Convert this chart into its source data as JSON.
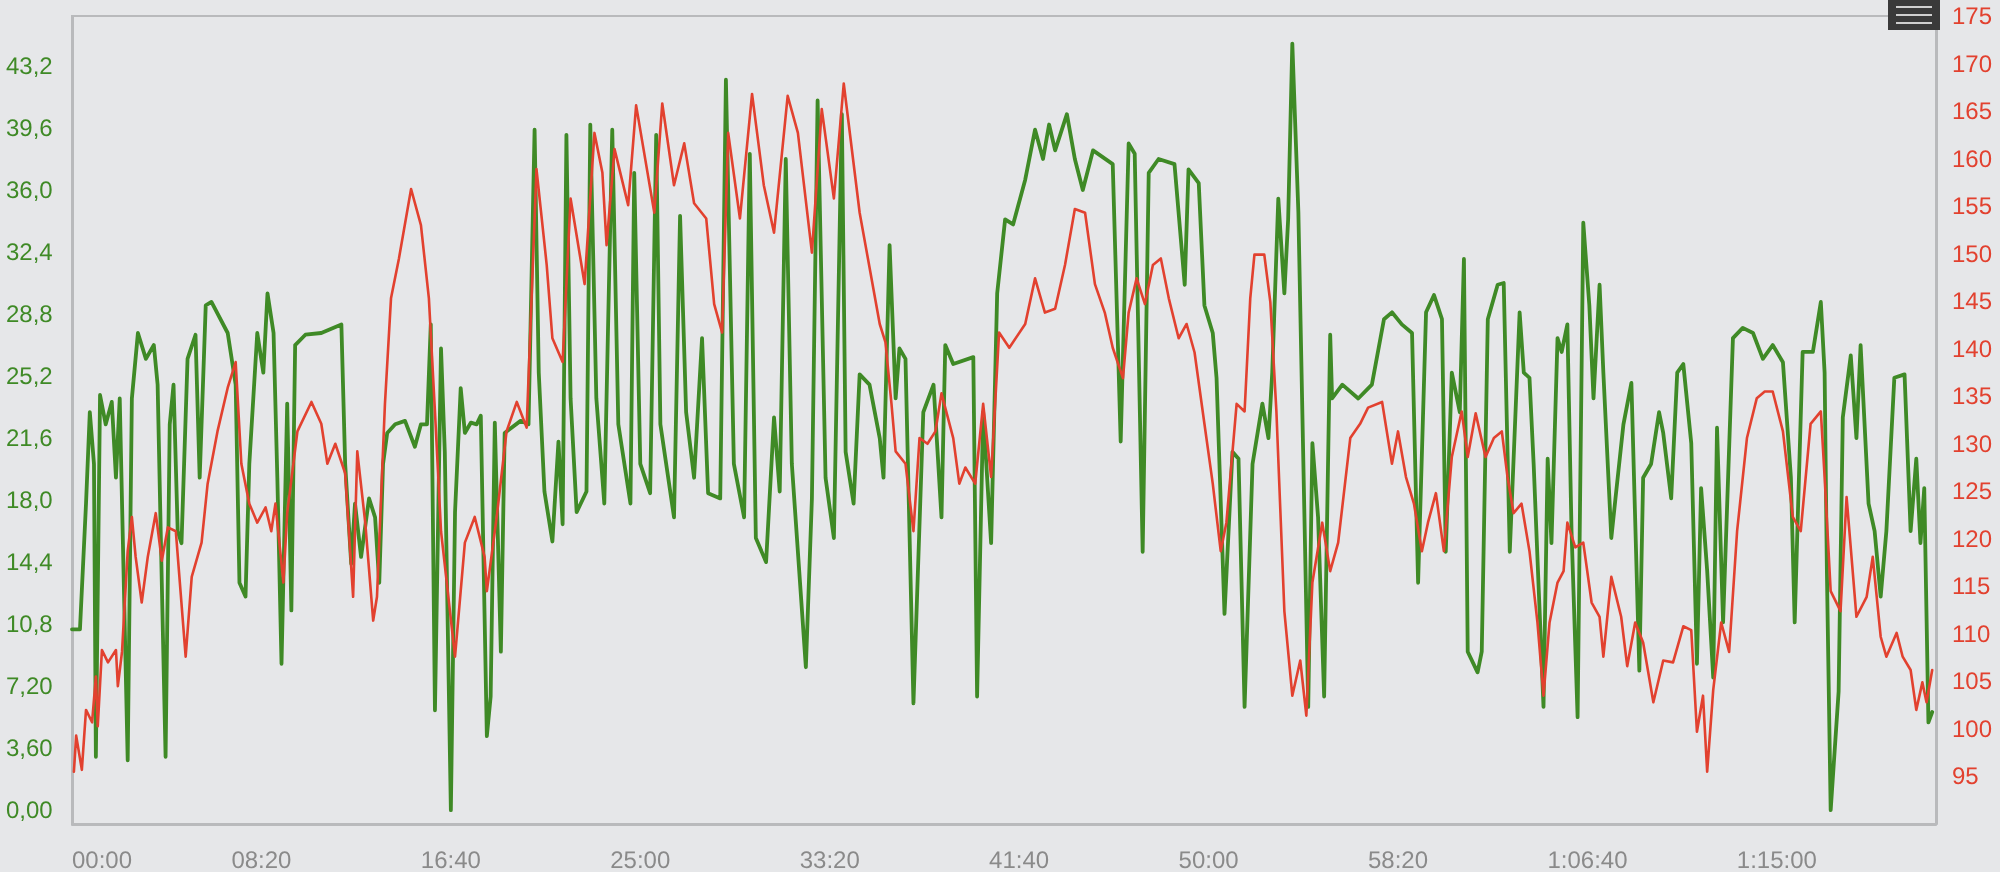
{
  "chart_data": {
    "type": "line",
    "marker": "none",
    "line_style": "solid",
    "xlim": [
      0,
      4920
    ],
    "xticks": [
      {
        "value": 0,
        "label": "00:00"
      },
      {
        "value": 500,
        "label": "08:20"
      },
      {
        "value": 1000,
        "label": "16:40"
      },
      {
        "value": 1500,
        "label": "25:00"
      },
      {
        "value": 2000,
        "label": "33:20"
      },
      {
        "value": 2500,
        "label": "41:40"
      },
      {
        "value": 3000,
        "label": "50:00"
      },
      {
        "value": 3500,
        "label": "58:20"
      },
      {
        "value": 4000,
        "label": "1:06:40"
      },
      {
        "value": 4500,
        "label": "1:15:00"
      }
    ],
    "ylim": [
      -0.8,
      46.1
    ],
    "yticks": [
      {
        "value": 0,
        "label": "0,00"
      },
      {
        "value": 3.6,
        "label": "3,60"
      },
      {
        "value": 7.2,
        "label": "7,20"
      },
      {
        "value": 10.8,
        "label": "10,8"
      },
      {
        "value": 14.4,
        "label": "14,4"
      },
      {
        "value": 18,
        "label": "18,0"
      },
      {
        "value": 21.6,
        "label": "21,6"
      },
      {
        "value": 25.2,
        "label": "25,2"
      },
      {
        "value": 28.8,
        "label": "28,8"
      },
      {
        "value": 32.4,
        "label": "32,4"
      },
      {
        "value": 36,
        "label": "36,0"
      },
      {
        "value": 39.6,
        "label": "39,6"
      },
      {
        "value": 43.2,
        "label": "43,2"
      }
    ],
    "y2lim": [
      90,
      175
    ],
    "y2ticks": [
      95,
      100,
      105,
      110,
      115,
      120,
      125,
      130,
      135,
      140,
      145,
      150,
      155,
      160,
      165,
      170,
      175
    ],
    "series": [
      {
        "color": "#3f8a26",
        "x": [
          0,
          21,
          37,
          47,
          58,
          63,
          74,
          89,
          105,
          116,
          126,
          147,
          158,
          174,
          195,
          216,
          226,
          237,
          247,
          258,
          268,
          279,
          289,
          305,
          326,
          337,
          353,
          368,
          411,
          432,
          442,
          458,
          468,
          489,
          505,
          516,
          532,
          542,
          553,
          568,
          579,
          589,
          616,
          658,
          711,
          721,
          737,
          747,
          763,
          784,
          800,
          811,
          821,
          832,
          853,
          879,
          905,
          921,
          937,
          947,
          958,
          974,
          984,
          1000,
          1011,
          1026,
          1037,
          1053,
          1068,
          1079,
          1095,
          1105,
          1116,
          1132,
          1142,
          1184,
          1205,
          1221,
          1232,
          1247,
          1268,
          1284,
          1295,
          1305,
          1316,
          1332,
          1358,
          1368,
          1384,
          1405,
          1426,
          1442,
          1474,
          1484,
          1500,
          1526,
          1542,
          1553,
          1589,
          1605,
          1621,
          1642,
          1663,
          1679,
          1711,
          1726,
          1747,
          1774,
          1789,
          1805,
          1832,
          1853,
          1868,
          1884,
          1900,
          1937,
          1953,
          1968,
          1989,
          2011,
          2032,
          2042,
          2063,
          2079,
          2105,
          2132,
          2142,
          2158,
          2174,
          2184,
          2200,
          2221,
          2247,
          2274,
          2295,
          2305,
          2326,
          2379,
          2389,
          2405,
          2426,
          2442,
          2463,
          2484,
          2516,
          2542,
          2563,
          2579,
          2595,
          2626,
          2647,
          2668,
          2695,
          2747,
          2768,
          2789,
          2805,
          2826,
          2842,
          2868,
          2910,
          2937,
          2947,
          2974,
          2989,
          3011,
          3021,
          3042,
          3063,
          3079,
          3095,
          3116,
          3142,
          3158,
          3168,
          3184,
          3200,
          3210,
          3221,
          3237,
          3263,
          3274,
          3289,
          3305,
          3321,
          3326,
          3353,
          3395,
          3431,
          3463,
          3484,
          3510,
          3537,
          3553,
          3574,
          3595,
          3616,
          3626,
          3642,
          3663,
          3674,
          3684,
          3710,
          3721,
          3737,
          3763,
          3779,
          3795,
          3821,
          3832,
          3847,
          3858,
          3884,
          3895,
          3905,
          3921,
          3932,
          3947,
          3958,
          3974,
          3989,
          4005,
          4016,
          4032,
          4042,
          4063,
          4074,
          4095,
          4116,
          4137,
          4147,
          4168,
          4189,
          4200,
          4221,
          4237,
          4253,
          4274,
          4289,
          4300,
          4316,
          4332,
          4342,
          4358,
          4384,
          4410,
          4437,
          4463,
          4489,
          4516,
          4537,
          4547,
          4568,
          4595,
          4616,
          4626,
          4632,
          4642,
          4663,
          4674,
          4695,
          4710,
          4721,
          4742,
          4758,
          4774,
          4789,
          4810,
          4837,
          4853,
          4868,
          4879,
          4889,
          4900,
          4910
        ],
        "values": [
          10.5,
          10.5,
          17.8,
          23.1,
          20.1,
          3.1,
          24.1,
          22.4,
          23.7,
          19.3,
          23.9,
          2.9,
          23.9,
          27.7,
          26.2,
          27.0,
          24.7,
          13.2,
          3.1,
          22.4,
          24.7,
          16.2,
          15.5,
          26.2,
          27.6,
          19.3,
          29.3,
          29.5,
          27.7,
          24.7,
          13.2,
          12.4,
          20.1,
          27.7,
          25.4,
          30.0,
          27.7,
          19.3,
          8.5,
          23.6,
          11.6,
          27.0,
          27.6,
          27.7,
          28.2,
          20.1,
          14.3,
          17.8,
          14.7,
          18.1,
          17.0,
          13.2,
          20.1,
          21.9,
          22.4,
          22.6,
          21.1,
          22.4,
          22.4,
          28.2,
          5.8,
          26.8,
          20.8,
          0,
          17.3,
          24.5,
          21.9,
          22.5,
          22.4,
          22.9,
          4.3,
          6.6,
          22.5,
          9.2,
          21.9,
          22.6,
          22.4,
          39.5,
          25.4,
          18.5,
          15.6,
          21.4,
          16.6,
          39.2,
          23.9,
          17.3,
          18.5,
          39.8,
          23.9,
          17.8,
          39.5,
          22.4,
          17.8,
          37.0,
          20.1,
          18.4,
          39.2,
          22.4,
          17.0,
          34.5,
          23.1,
          19.3,
          27.4,
          18.4,
          18.1,
          42.4,
          20.1,
          17.0,
          38.1,
          15.8,
          14.4,
          22.8,
          18.5,
          37.8,
          20.1,
          8.3,
          18.1,
          41.2,
          19.3,
          15.8,
          40.4,
          20.8,
          17.8,
          25.3,
          24.7,
          21.6,
          19.3,
          32.8,
          23.9,
          26.8,
          26.2,
          6.2,
          23.1,
          24.7,
          17.0,
          27.0,
          25.9,
          26.3,
          6.6,
          23.1,
          15.5,
          30.0,
          34.3,
          34.0,
          36.6,
          39.5,
          37.8,
          39.8,
          38.3,
          40.4,
          37.8,
          36.0,
          38.3,
          37.5,
          21.4,
          38.7,
          38.1,
          15.0,
          37.0,
          37.8,
          37.5,
          30.5,
          37.2,
          36.4,
          29.3,
          27.7,
          25.1,
          11.4,
          20.8,
          20.4,
          6.0,
          20.1,
          23.6,
          21.6,
          25.4,
          35.5,
          30.0,
          34.3,
          44.5,
          34.7,
          6.0,
          21.3,
          17.0,
          6.6,
          27.6,
          23.9,
          24.7,
          23.9,
          24.7,
          28.5,
          28.9,
          28.2,
          27.7,
          13.2,
          28.9,
          29.9,
          28.5,
          15.0,
          25.4,
          23.1,
          32.0,
          9.2,
          8.0,
          9.2,
          28.5,
          30.5,
          30.6,
          15.0,
          28.9,
          25.4,
          25.1,
          20.1,
          6.0,
          20.4,
          15.5,
          27.4,
          26.6,
          28.2,
          16.2,
          5.4,
          34.1,
          29.3,
          23.9,
          30.5,
          25.4,
          15.8,
          18.1,
          22.4,
          24.8,
          8.1,
          19.3,
          20.1,
          23.1,
          21.9,
          18.1,
          25.4,
          25.9,
          21.3,
          8.5,
          18.7,
          13.9,
          7.7,
          22.2,
          10.9,
          27.4,
          28.0,
          27.7,
          26.2,
          27.0,
          26.0,
          19.3,
          10.9,
          26.6,
          26.6,
          29.5,
          25.4,
          13.9,
          0,
          6.9,
          22.8,
          26.4,
          21.6,
          27.0,
          17.8,
          16.2,
          12.4,
          16.2,
          25.1,
          25.3,
          16.2,
          20.4,
          15.5,
          18.7,
          5.1,
          5.7
        ]
      },
      {
        "color": "#e2412f",
        "axis": "y2",
        "x": [
          5,
          11,
          26,
          37,
          53,
          63,
          68,
          79,
          95,
          116,
          121,
          132,
          147,
          158,
          168,
          184,
          200,
          221,
          237,
          253,
          274,
          300,
          316,
          342,
          358,
          384,
          411,
          432,
          447,
          468,
          489,
          511,
          526,
          537,
          558,
          568,
          595,
          632,
          658,
          674,
          695,
          721,
          742,
          753,
          774,
          795,
          805,
          826,
          842,
          863,
          895,
          921,
          942,
          958,
          974,
          1011,
          1037,
          1063,
          1089,
          1095,
          1121,
          1147,
          1174,
          1200,
          1226,
          1253,
          1268,
          1295,
          1316,
          1353,
          1379,
          1400,
          1411,
          1432,
          1468,
          1489,
          1537,
          1558,
          1589,
          1616,
          1642,
          1674,
          1695,
          1716,
          1732,
          1763,
          1795,
          1826,
          1853,
          1889,
          1916,
          1953,
          1979,
          2011,
          2037,
          2079,
          2132,
          2147,
          2163,
          2174,
          2200,
          2221,
          2237,
          2258,
          2279,
          2295,
          2326,
          2342,
          2358,
          2384,
          2405,
          2426,
          2447,
          2474,
          2516,
          2542,
          2568,
          2595,
          2621,
          2647,
          2674,
          2700,
          2726,
          2747,
          2774,
          2789,
          2810,
          2832,
          2853,
          2874,
          2895,
          2921,
          2942,
          2963,
          2989,
          3011,
          3032,
          3047,
          3074,
          3095,
          3110,
          3121,
          3147,
          3163,
          3179,
          3200,
          3221,
          3242,
          3258,
          3274,
          3300,
          3321,
          3342,
          3374,
          3400,
          3421,
          3458,
          3484,
          3500,
          3521,
          3542,
          3563,
          3579,
          3600,
          3621,
          3642,
          3668,
          3684,
          3705,
          3731,
          3753,
          3774,
          3789,
          3805,
          3826,
          3847,
          3868,
          3884,
          3900,
          3921,
          3937,
          3947,
          3968,
          3989,
          4011,
          4032,
          4042,
          4063,
          4089,
          4105,
          4126,
          4147,
          4174,
          4200,
          4226,
          4253,
          4274,
          4289,
          4305,
          4316,
          4332,
          4353,
          4374,
          4395,
          4421,
          4447,
          4468,
          4489,
          4516,
          4542,
          4563,
          4589,
          4616,
          4626,
          4642,
          4668,
          4684,
          4710,
          4737,
          4753,
          4774,
          4789,
          4816,
          4832,
          4853,
          4868,
          4884,
          4895,
          4910
        ],
        "values": [
          95.5,
          99.3,
          95.7,
          102.0,
          100.7,
          105.5,
          100.3,
          108.3,
          107.0,
          108.3,
          104.5,
          108.1,
          118.7,
          122.3,
          118.1,
          113.3,
          118.1,
          122.7,
          117.7,
          121.2,
          120.8,
          107.6,
          116.0,
          119.6,
          125.8,
          131.3,
          135.9,
          138.6,
          127.9,
          123.7,
          121.7,
          123.3,
          120.8,
          123.7,
          115.4,
          122.7,
          131.3,
          134.4,
          132.1,
          127.9,
          130.0,
          126.9,
          113.9,
          129.2,
          121.7,
          111.4,
          113.9,
          134.2,
          145.3,
          149.5,
          156.8,
          153.0,
          145.3,
          133.4,
          120.8,
          107.6,
          119.6,
          122.3,
          118.1,
          114.5,
          122.3,
          131.3,
          134.4,
          131.7,
          158.9,
          148.8,
          141.1,
          138.6,
          155.8,
          146.8,
          162.7,
          158.5,
          150.9,
          161.0,
          155.1,
          165.6,
          154.3,
          165.8,
          157.2,
          161.6,
          155.3,
          153.7,
          144.7,
          141.7,
          162.7,
          153.7,
          166.8,
          157.2,
          152.2,
          166.6,
          162.7,
          150.1,
          165.2,
          155.8,
          167.9,
          154.3,
          142.6,
          140.7,
          134.2,
          129.2,
          127.9,
          120.8,
          130.6,
          130.0,
          131.3,
          135.3,
          130.6,
          125.8,
          127.5,
          125.8,
          134.2,
          126.5,
          141.7,
          140.1,
          142.6,
          147.4,
          143.8,
          144.2,
          148.8,
          154.7,
          154.3,
          146.8,
          143.8,
          140.1,
          136.9,
          143.8,
          147.4,
          144.7,
          148.8,
          149.5,
          145.3,
          141.1,
          142.6,
          139.6,
          132.1,
          125.8,
          118.7,
          121.7,
          134.2,
          133.4,
          145.3,
          149.9,
          149.9,
          144.9,
          133.4,
          112.4,
          103.5,
          107.2,
          101.4,
          115.4,
          121.7,
          116.6,
          119.6,
          130.6,
          132.1,
          133.8,
          134.4,
          127.9,
          131.3,
          126.5,
          123.7,
          118.7,
          121.7,
          124.8,
          118.7,
          128.6,
          133.4,
          128.6,
          133.2,
          128.6,
          130.6,
          131.3,
          126.5,
          122.7,
          123.7,
          118.7,
          111.2,
          103.5,
          111.2,
          115.4,
          116.6,
          121.7,
          119.1,
          119.6,
          113.3,
          111.8,
          107.6,
          116.0,
          111.8,
          106.6,
          111.2,
          109.1,
          102.8,
          107.2,
          107.0,
          110.8,
          110.4,
          99.7,
          103.5,
          95.5,
          104.1,
          111.2,
          108.1,
          120.8,
          130.6,
          134.8,
          135.5,
          135.5,
          131.3,
          122.3,
          120.8,
          132.1,
          133.4,
          126.5,
          114.5,
          112.4,
          124.4,
          111.8,
          113.9,
          118.1,
          109.7,
          107.6,
          110.1,
          107.6,
          106.2,
          102.0,
          104.9,
          102.8,
          106.2
        ]
      }
    ]
  }
}
